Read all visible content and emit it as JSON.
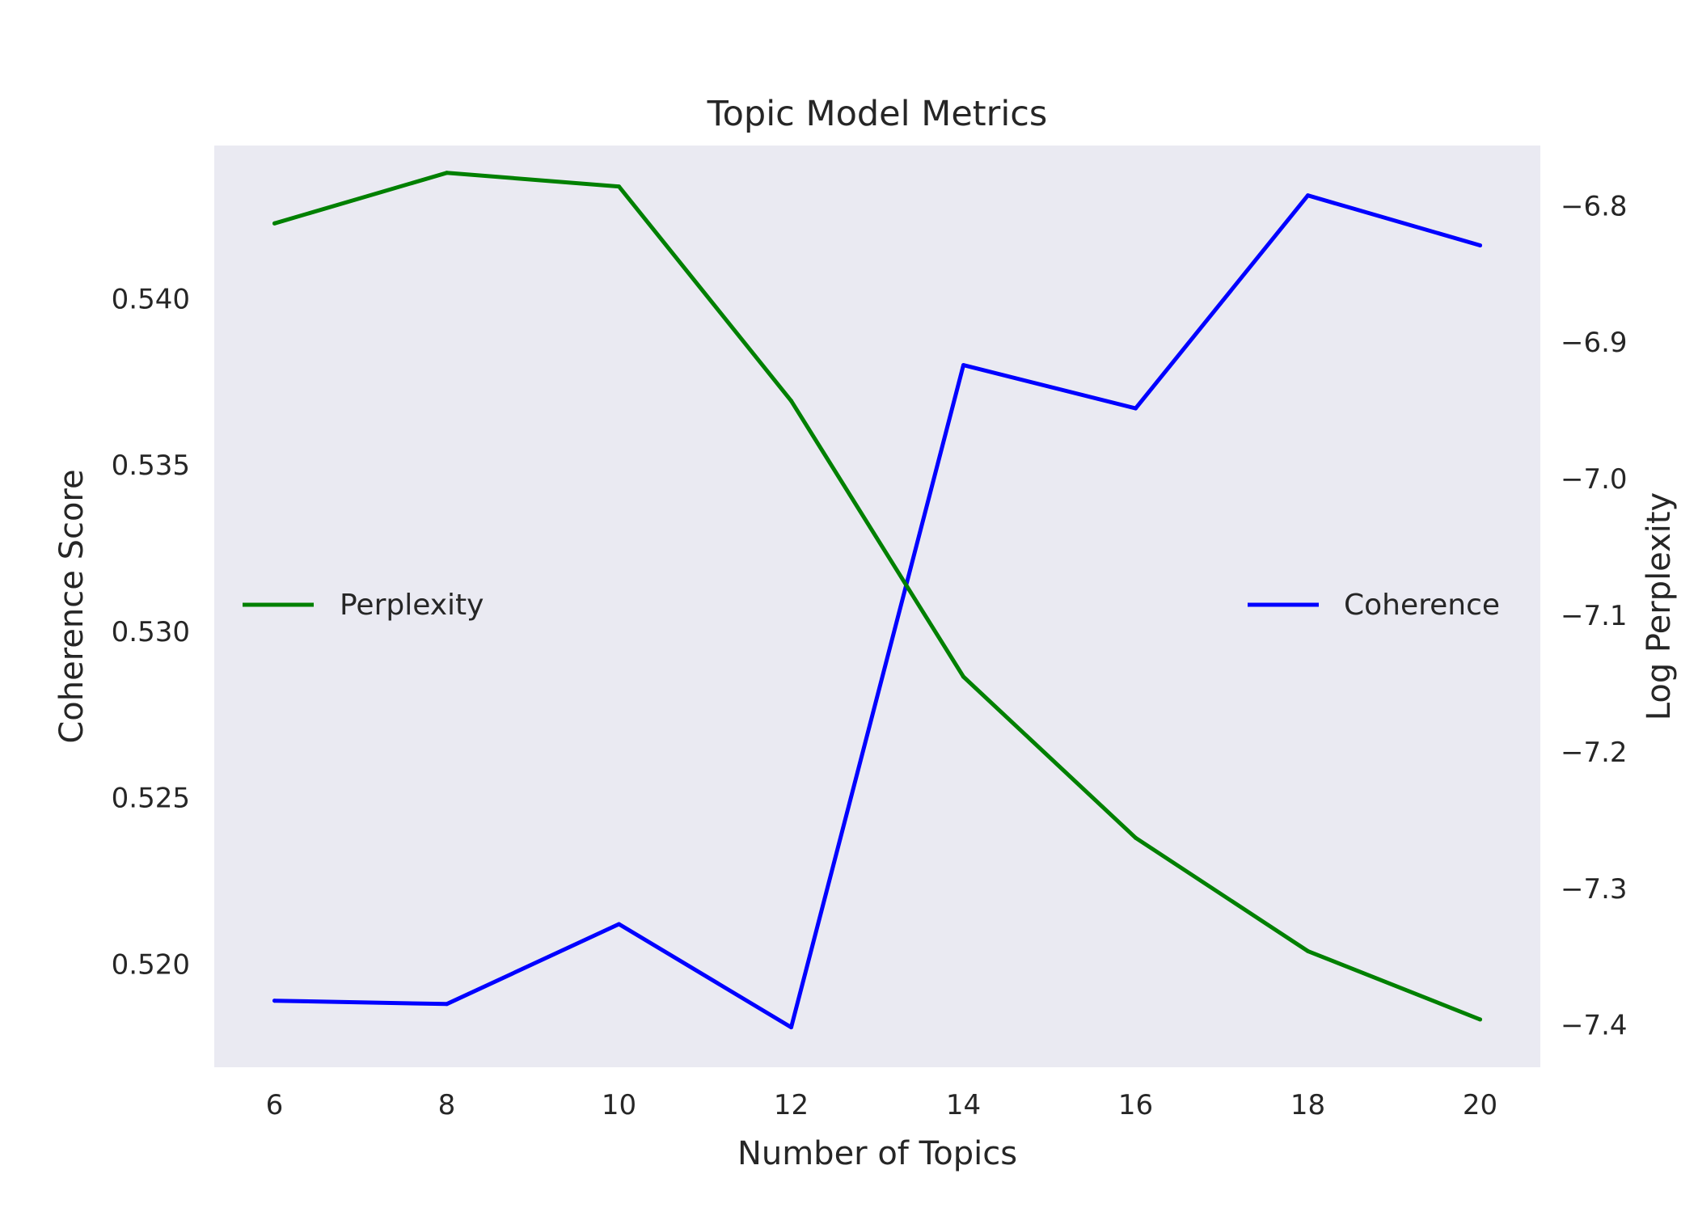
{
  "chart_data": {
    "type": "line",
    "title": "Topic Model Metrics",
    "xlabel": "Number of Topics",
    "ylabel_left": "Coherence Score",
    "ylabel_right": "Log Perplexity",
    "x": [
      6,
      8,
      10,
      12,
      14,
      16,
      18,
      20
    ],
    "xlim": [
      5.3,
      20.7
    ],
    "ylim_left": [
      0.5169,
      0.5446
    ],
    "ylim_right": [
      -7.431,
      -6.756
    ],
    "x_ticks": [
      6,
      8,
      10,
      12,
      14,
      16,
      18,
      20
    ],
    "y_left_ticks": [
      0.52,
      0.525,
      0.53,
      0.535,
      0.54
    ],
    "y_left_tick_labels": [
      "0.520",
      "0.525",
      "0.530",
      "0.535",
      "0.540"
    ],
    "y_right_ticks": [
      -7.4,
      -7.3,
      -7.2,
      -7.1,
      -7.0,
      -6.9,
      -6.8
    ],
    "y_right_tick_labels": [
      "−7.4",
      "−7.3",
      "−7.2",
      "−7.1",
      "−7.0",
      "−6.9",
      "−6.8"
    ],
    "grid": false,
    "series": [
      {
        "name": "Coherence",
        "axis": "left",
        "color": "#0000ff",
        "values": [
          0.5189,
          0.5188,
          0.5212,
          0.5181,
          0.538,
          0.5367,
          0.5431,
          0.5416
        ],
        "legend_position": "center-right"
      },
      {
        "name": "Perplexity",
        "axis": "right",
        "color": "#008000",
        "values": [
          -6.813,
          -6.776,
          -6.786,
          -6.943,
          -7.145,
          -7.263,
          -7.346,
          -7.396
        ],
        "legend_position": "center-left"
      }
    ]
  }
}
